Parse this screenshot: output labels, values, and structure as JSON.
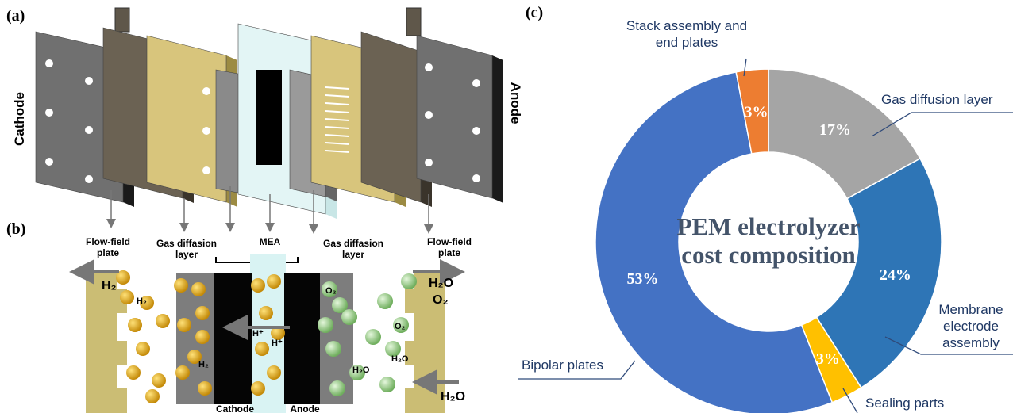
{
  "panels": {
    "a": "(a)",
    "b": "(b)",
    "c": "(c)"
  },
  "diagram_a": {
    "left": "Cathode",
    "right": "Anode"
  },
  "diagram_b": {
    "layers": [
      "Flow-field plate",
      "Gas diffasion layer",
      "MEA",
      "Gas diffasion layer",
      "Flow-field plate"
    ],
    "gases": [
      "H₂",
      "H₂O",
      "O₂",
      "H₂O"
    ],
    "species": [
      "H₂",
      "H₂",
      "H⁺",
      "H⁺",
      "O₂",
      "O₂",
      "H₂O",
      "H₂O"
    ],
    "bottom": [
      "Cathode",
      "Anode"
    ]
  },
  "chart_data": {
    "type": "donut",
    "title": "PEM electrolyzer cost composition",
    "categories": [
      "Gas diffusion layer",
      "Membrane electrode assembly",
      "Sealing parts",
      "Bipolar plates",
      "Stack assembly and end plates"
    ],
    "values": [
      17,
      24,
      3,
      53,
      3
    ],
    "value_labels": [
      "17%",
      "24%",
      "3%",
      "53%",
      "3%"
    ],
    "colors": [
      "#a5a5a5",
      "#2e75b6",
      "#ffc000",
      "#4472c4",
      "#ed7d31"
    ]
  }
}
